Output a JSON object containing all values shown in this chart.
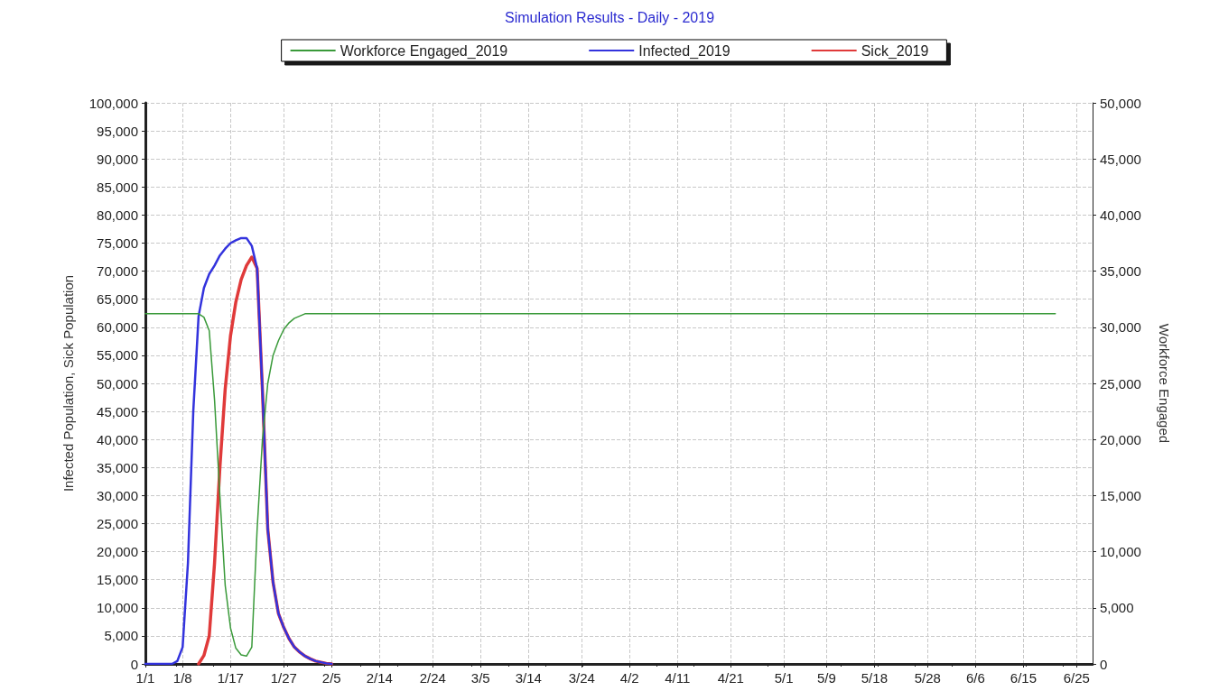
{
  "chart_data": {
    "type": "line",
    "title": "Simulation Results - Daily - 2019",
    "ylabel": "Infected Population, Sick Population",
    "y2label": "Workforce Engaged",
    "series": [
      {
        "name": "Workforce Engaged_2019",
        "color": "#3a9a3a",
        "axis": "y2",
        "x": [
          "2019-01-01",
          "2019-01-11",
          "2019-01-12",
          "2019-01-13",
          "2019-01-14",
          "2019-01-15",
          "2019-01-16",
          "2019-01-17",
          "2019-01-18",
          "2019-01-19",
          "2019-01-20",
          "2019-01-21",
          "2019-01-22",
          "2019-01-23",
          "2019-01-24",
          "2019-01-25",
          "2019-01-26",
          "2019-01-27",
          "2019-01-28",
          "2019-01-29",
          "2019-01-30",
          "2019-01-31",
          "2019-02-01",
          "2019-06-21"
        ],
        "values": [
          31200,
          31200,
          30900,
          29700,
          23500,
          15000,
          7000,
          3200,
          1400,
          800,
          700,
          1500,
          12000,
          20000,
          25000,
          27500,
          28800,
          29800,
          30400,
          30800,
          31000,
          31200,
          31200,
          31200
        ]
      },
      {
        "name": "Infected_2019",
        "color": "#3333dd",
        "x": [
          "2019-01-01",
          "2019-01-06",
          "2019-01-07",
          "2019-01-08",
          "2019-01-09",
          "2019-01-10",
          "2019-01-11",
          "2019-01-12",
          "2019-01-13",
          "2019-01-14",
          "2019-01-15",
          "2019-01-16",
          "2019-01-17",
          "2019-01-18",
          "2019-01-19",
          "2019-01-20",
          "2019-01-21",
          "2019-01-22",
          "2019-01-23",
          "2019-01-24",
          "2019-01-25",
          "2019-01-26",
          "2019-01-27",
          "2019-01-28",
          "2019-01-29",
          "2019-01-30",
          "2019-01-31",
          "2019-02-01",
          "2019-02-02",
          "2019-02-03",
          "2019-02-04",
          "2019-02-05"
        ],
        "values": [
          0,
          0,
          500,
          3000,
          18000,
          45000,
          62000,
          67000,
          69500,
          71000,
          72800,
          74000,
          75000,
          75500,
          75900,
          75900,
          74500,
          70500,
          48700,
          24000,
          14500,
          9000,
          6500,
          4500,
          3000,
          2100,
          1400,
          900,
          500,
          300,
          100,
          0
        ]
      },
      {
        "name": "Sick_2019",
        "color": "#e03a3a",
        "x": [
          "2019-01-11",
          "2019-01-12",
          "2019-01-13",
          "2019-01-14",
          "2019-01-15",
          "2019-01-16",
          "2019-01-17",
          "2019-01-18",
          "2019-01-19",
          "2019-01-20",
          "2019-01-21",
          "2019-01-22",
          "2019-01-23",
          "2019-01-24",
          "2019-01-25",
          "2019-01-26",
          "2019-01-27",
          "2019-01-28",
          "2019-01-29",
          "2019-01-30",
          "2019-01-31",
          "2019-02-01",
          "2019-02-02",
          "2019-02-03",
          "2019-02-04",
          "2019-02-05"
        ],
        "values": [
          0,
          1500,
          5000,
          18000,
          35000,
          49000,
          58500,
          64500,
          68500,
          71000,
          72500,
          70500,
          48700,
          24000,
          14500,
          9000,
          6500,
          4500,
          3000,
          2100,
          1400,
          900,
          500,
          300,
          100,
          0
        ]
      }
    ],
    "xlim": [
      "2019-01-01",
      "2019-06-28"
    ],
    "xticks": [
      {
        "value": "2019-01-01",
        "label": "1/1"
      },
      {
        "value": "2019-01-08",
        "label": "1/8"
      },
      {
        "value": "2019-01-17",
        "label": "1/17"
      },
      {
        "value": "2019-01-27",
        "label": "1/27"
      },
      {
        "value": "2019-02-05",
        "label": "2/5"
      },
      {
        "value": "2019-02-14",
        "label": "2/14"
      },
      {
        "value": "2019-02-24",
        "label": "2/24"
      },
      {
        "value": "2019-03-05",
        "label": "3/5"
      },
      {
        "value": "2019-03-14",
        "label": "3/14"
      },
      {
        "value": "2019-03-24",
        "label": "3/24"
      },
      {
        "value": "2019-04-02",
        "label": "4/2"
      },
      {
        "value": "2019-04-11",
        "label": "4/11"
      },
      {
        "value": "2019-04-21",
        "label": "4/21"
      },
      {
        "value": "2019-05-01",
        "label": "5/1"
      },
      {
        "value": "2019-05-09",
        "label": "5/9"
      },
      {
        "value": "2019-05-18",
        "label": "5/18"
      },
      {
        "value": "2019-05-28",
        "label": "5/28"
      },
      {
        "value": "2019-06-06",
        "label": "6/6"
      },
      {
        "value": "2019-06-15",
        "label": "6/15"
      },
      {
        "value": "2019-06-25",
        "label": "6/25"
      }
    ],
    "ylim": [
      0,
      100000
    ],
    "yticks": [
      {
        "value": 0,
        "label": "0"
      },
      {
        "value": 5000,
        "label": "5,000"
      },
      {
        "value": 10000,
        "label": "10,000"
      },
      {
        "value": 15000,
        "label": "15,000"
      },
      {
        "value": 20000,
        "label": "20,000"
      },
      {
        "value": 25000,
        "label": "25,000"
      },
      {
        "value": 30000,
        "label": "30,000"
      },
      {
        "value": 35000,
        "label": "35,000"
      },
      {
        "value": 40000,
        "label": "40,000"
      },
      {
        "value": 45000,
        "label": "45,000"
      },
      {
        "value": 50000,
        "label": "50,000"
      },
      {
        "value": 55000,
        "label": "55,000"
      },
      {
        "value": 60000,
        "label": "60,000"
      },
      {
        "value": 65000,
        "label": "65,000"
      },
      {
        "value": 70000,
        "label": "70,000"
      },
      {
        "value": 75000,
        "label": "75,000"
      },
      {
        "value": 80000,
        "label": "80,000"
      },
      {
        "value": 85000,
        "label": "85,000"
      },
      {
        "value": 90000,
        "label": "90,000"
      },
      {
        "value": 95000,
        "label": "95,000"
      },
      {
        "value": 100000,
        "label": "100,000"
      }
    ],
    "y2lim": [
      0,
      50000
    ],
    "y2ticks": [
      {
        "value": 0,
        "label": "0"
      },
      {
        "value": 5000,
        "label": "5,000"
      },
      {
        "value": 10000,
        "label": "10,000"
      },
      {
        "value": 15000,
        "label": "15,000"
      },
      {
        "value": 20000,
        "label": "20,000"
      },
      {
        "value": 25000,
        "label": "25,000"
      },
      {
        "value": 30000,
        "label": "30,000"
      },
      {
        "value": 35000,
        "label": "35,000"
      },
      {
        "value": 40000,
        "label": "40,000"
      },
      {
        "value": 45000,
        "label": "45,000"
      },
      {
        "value": 50000,
        "label": "50,000"
      }
    ],
    "grid": true,
    "legend": "top",
    "marker": "none",
    "line_style": "solid"
  }
}
